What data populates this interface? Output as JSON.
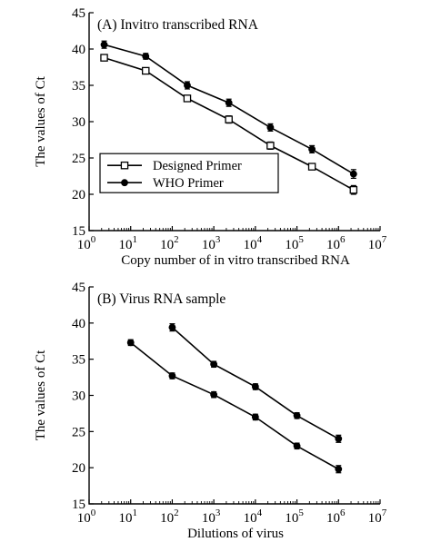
{
  "chart_data": [
    {
      "type": "line",
      "panel": "A",
      "title": "(A) Invitro transcribed RNA",
      "xlabel": "Copy number of in vitro transcribed RNA",
      "ylabel": "The values of Ct",
      "xscale": "log",
      "xlim": [
        1,
        10000000
      ],
      "ylim": [
        15,
        45
      ],
      "xticks": [
        {
          "base": "10",
          "exp": "0"
        },
        {
          "base": "10",
          "exp": "1"
        },
        {
          "base": "10",
          "exp": "2"
        },
        {
          "base": "10",
          "exp": "3"
        },
        {
          "base": "10",
          "exp": "4"
        },
        {
          "base": "10",
          "exp": "5"
        },
        {
          "base": "10",
          "exp": "6"
        },
        {
          "base": "10",
          "exp": "7"
        }
      ],
      "yticks": [
        "15",
        "20",
        "25",
        "30",
        "35",
        "40",
        "45"
      ],
      "legend_position": "lower-left",
      "grid": false,
      "series": [
        {
          "name": "Designed Primer",
          "marker": "open-square",
          "x": [
            2.3,
            23,
            230,
            2300,
            23000,
            230000,
            2300000
          ],
          "y": [
            38.8,
            37.0,
            33.2,
            30.3,
            26.7,
            23.8,
            20.6
          ],
          "err": [
            0.4,
            0.4,
            0.4,
            0.5,
            0.5,
            0.4,
            0.6
          ]
        },
        {
          "name": "WHO Primer",
          "marker": "filled-circle",
          "x": [
            2.3,
            23,
            230,
            2300,
            23000,
            230000,
            2300000
          ],
          "y": [
            40.6,
            39.0,
            35.0,
            32.6,
            29.2,
            26.2,
            22.8
          ],
          "err": [
            0.5,
            0.4,
            0.5,
            0.5,
            0.5,
            0.5,
            0.6
          ]
        }
      ]
    },
    {
      "type": "line",
      "panel": "B",
      "title": "(B) Virus RNA sample",
      "xlabel": "Dilutions of virus",
      "ylabel": "The values of Ct",
      "xscale": "log",
      "xlim": [
        1,
        10000000
      ],
      "ylim": [
        15,
        45
      ],
      "xticks": [
        {
          "base": "10",
          "exp": "0"
        },
        {
          "base": "10",
          "exp": "1"
        },
        {
          "base": "10",
          "exp": "2"
        },
        {
          "base": "10",
          "exp": "3"
        },
        {
          "base": "10",
          "exp": "4"
        },
        {
          "base": "10",
          "exp": "5"
        },
        {
          "base": "10",
          "exp": "6"
        },
        {
          "base": "10",
          "exp": "7"
        }
      ],
      "yticks": [
        "15",
        "20",
        "25",
        "30",
        "35",
        "40",
        "45"
      ],
      "grid": false,
      "series": [
        {
          "name": "Designed Primer",
          "marker": "filled-circle",
          "x": [
            10,
            100,
            1000,
            10000,
            100000,
            1000000
          ],
          "y": [
            37.3,
            32.7,
            30.1,
            27.0,
            23.0,
            19.8
          ],
          "err": [
            0.4,
            0.4,
            0.4,
            0.4,
            0.4,
            0.5
          ]
        },
        {
          "name": "WHO Primer",
          "marker": "filled-circle",
          "x": [
            100,
            1000,
            10000,
            100000,
            1000000
          ],
          "y": [
            39.4,
            34.3,
            31.2,
            27.2,
            24.0
          ],
          "err": [
            0.5,
            0.4,
            0.4,
            0.4,
            0.5
          ]
        }
      ]
    }
  ]
}
